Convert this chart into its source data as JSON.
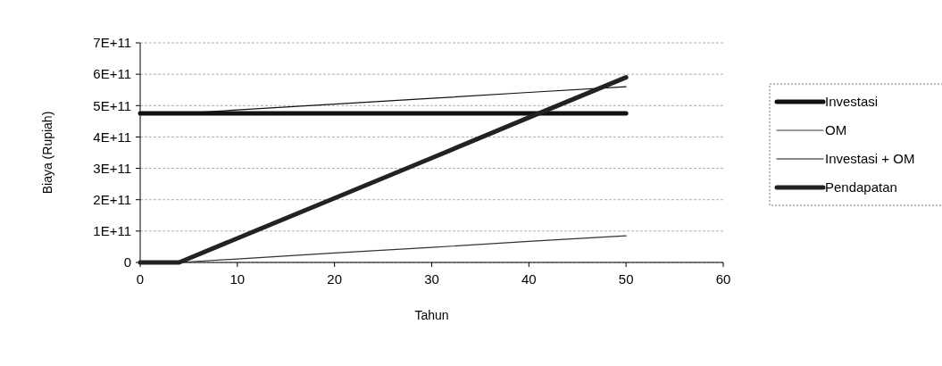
{
  "chart_data": {
    "type": "line",
    "xlabel": "Tahun",
    "ylabel": "Biaya (Rupiah)",
    "x": [
      0,
      4,
      10,
      20,
      30,
      40,
      50
    ],
    "xlim": [
      0,
      60
    ],
    "xticks": [
      0,
      10,
      20,
      30,
      40,
      50,
      60
    ],
    "ylim": [
      0,
      700000000000
    ],
    "yticks": [
      0,
      {
        "value": 100000000000,
        "label": "1E+11"
      },
      {
        "value": 200000000000,
        "label": "2E+11"
      },
      {
        "value": 300000000000,
        "label": "3E+11"
      },
      {
        "value": 400000000000,
        "label": "4E+11"
      },
      {
        "value": 500000000000,
        "label": "5E+11"
      },
      {
        "value": 600000000000,
        "label": "6E+11"
      },
      {
        "value": 700000000000,
        "label": "7E+11"
      }
    ],
    "grid": "y",
    "legend": "right",
    "marker": "none",
    "line_style": "solid",
    "series": [
      {
        "name": "Investasi",
        "color": "#111111",
        "values": [
          475000000000,
          475000000000,
          475000000000,
          475000000000,
          475000000000,
          475000000000,
          475000000000
        ]
      },
      {
        "name": "OM",
        "color": "#333333",
        "values": [
          0,
          0,
          11000000000,
          30000000000,
          48000000000,
          67000000000,
          85000000000
        ]
      },
      {
        "name": "Investasi + OM",
        "color": "#111111",
        "values": [
          475000000000,
          475000000000,
          486000000000,
          505000000000,
          523000000000,
          542000000000,
          560000000000
        ]
      },
      {
        "name": "Pendapatan",
        "color": "#222222",
        "values": [
          0,
          0,
          77000000000,
          205000000000,
          333000000000,
          462000000000,
          590000000000
        ]
      }
    ]
  }
}
